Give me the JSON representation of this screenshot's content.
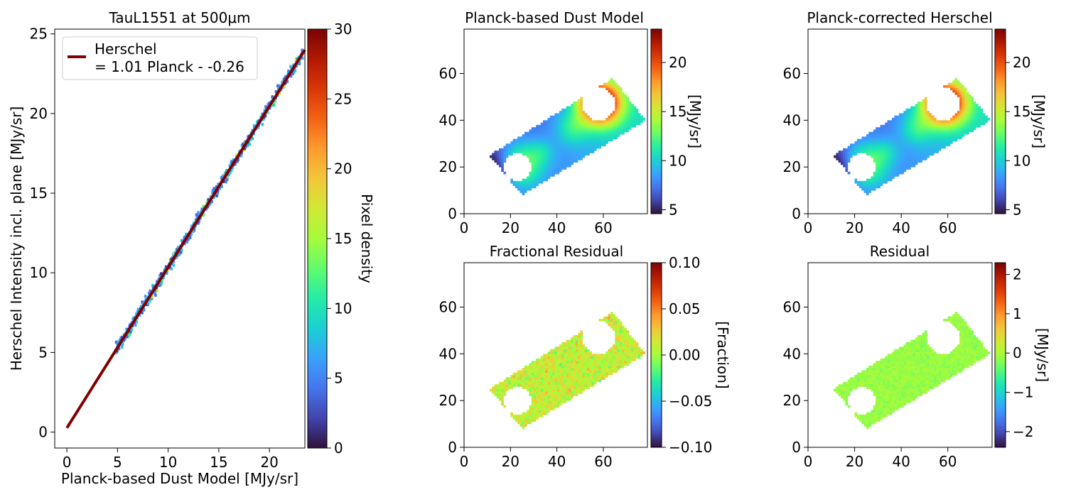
{
  "colors": {
    "fit_line": "#800000",
    "colormap": "turbo",
    "colormap_stops": [
      "#30123b",
      "#4145ab",
      "#4675ed",
      "#39a2fc",
      "#1bcfd4",
      "#24eca6",
      "#61fc6c",
      "#a4fc3b",
      "#d1e834",
      "#f3c63a",
      "#fe9b2d",
      "#f36315",
      "#d93806",
      "#b11901",
      "#7a0403"
    ]
  },
  "chart_data": [
    {
      "id": "scatter",
      "type": "heatmap",
      "title": "TauL1551 at 500μm",
      "xlabel": "Planck-based Dust Model [MJy/sr]",
      "ylabel": "Herschel Intensity incl. plane [MJy/sr]",
      "xlim": [
        -1.2,
        23.5
      ],
      "ylim": [
        -1,
        25.3
      ],
      "xticks": [
        0,
        5,
        10,
        15,
        20
      ],
      "yticks": [
        0,
        5,
        10,
        15,
        20,
        25
      ],
      "legend_location": "top-left",
      "legend_lines": [
        "Herschel",
        "= 1.01 Planck - -0.26"
      ],
      "fit": {
        "slope": 1.01,
        "intercept": 0.26,
        "x_range": [
          0,
          23.5
        ]
      },
      "density_points": {
        "x_range": [
          4.8,
          23.3
        ],
        "slope": 1.01,
        "intercept": 0.26,
        "scatter": 0.35
      },
      "colorbar": {
        "label": "Pixel density",
        "range": [
          0,
          30
        ],
        "ticks": [
          0,
          5,
          10,
          15,
          20,
          25,
          30
        ]
      }
    },
    {
      "id": "planck_model",
      "type": "heatmap",
      "title": "Planck-based Dust Model",
      "xlim": [
        0,
        79
      ],
      "ylim": [
        0,
        79
      ],
      "xticks": [
        0,
        20,
        40,
        60
      ],
      "yticks": [
        0,
        20,
        40,
        60
      ],
      "value_range": [
        4.6,
        23.4
      ],
      "colorbar": {
        "label": "[MJy/sr]",
        "ticks": [
          5,
          10,
          15,
          20
        ]
      }
    },
    {
      "id": "herschel_corrected",
      "type": "heatmap",
      "title": "Planck-corrected Herschel",
      "xlim": [
        0,
        79
      ],
      "ylim": [
        0,
        79
      ],
      "xticks": [
        0,
        20,
        40,
        60
      ],
      "yticks": [
        0,
        20,
        40,
        60
      ],
      "value_range": [
        4.6,
        23.4
      ],
      "colorbar": {
        "label": "[MJy/sr]",
        "ticks": [
          5,
          10,
          15,
          20
        ]
      }
    },
    {
      "id": "fractional_residual",
      "type": "heatmap",
      "title": "Fractional Residual",
      "xlim": [
        0,
        79
      ],
      "ylim": [
        0,
        79
      ],
      "xticks": [
        0,
        20,
        40,
        60
      ],
      "yticks": [
        0,
        20,
        40,
        60
      ],
      "value_range": [
        -0.1,
        0.1
      ],
      "tick_labels": [
        "0.10",
        "0.05",
        "0.00",
        "−0.05",
        "−0.10"
      ],
      "colorbar": {
        "label": "[Fraction]",
        "ticks": [
          0.1,
          0.05,
          0.0,
          -0.05,
          -0.1
        ]
      }
    },
    {
      "id": "residual",
      "type": "heatmap",
      "title": "Residual",
      "xlim": [
        0,
        79
      ],
      "ylim": [
        0,
        79
      ],
      "xticks": [
        0,
        20,
        40,
        60
      ],
      "yticks": [
        0,
        20,
        40,
        60
      ],
      "value_range": [
        -2.4,
        2.3
      ],
      "tick_labels": [
        "2",
        "1",
        "0",
        "−1",
        "−2"
      ],
      "colorbar": {
        "label": "[MJy/sr]",
        "ticks": [
          2,
          1,
          0,
          -1,
          -2
        ]
      }
    }
  ],
  "map_region": {
    "corners": [
      [
        11,
        25
      ],
      [
        25,
        8
      ],
      [
        78,
        40
      ],
      [
        64,
        58
      ]
    ],
    "holes": [
      {
        "cx": 23,
        "cy": 20,
        "r": 6
      },
      {
        "cx": 58,
        "cy": 47,
        "r": 7
      }
    ]
  }
}
